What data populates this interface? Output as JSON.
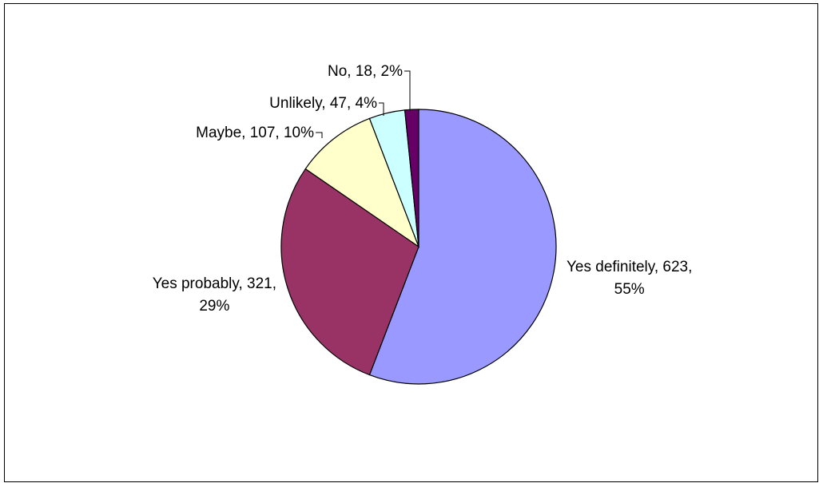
{
  "chart_data": {
    "type": "pie",
    "title": "",
    "legend": "none",
    "slices": [
      {
        "label": "Yes definitely",
        "value": 623,
        "percent": "55%",
        "color": "#9999ff",
        "display": [
          "Yes definitely, 623,",
          "55%"
        ]
      },
      {
        "label": "Yes probably",
        "value": 321,
        "percent": "29%",
        "color": "#993366",
        "display": [
          "Yes probably, 321,",
          "29%"
        ]
      },
      {
        "label": "Maybe",
        "value": 107,
        "percent": "10%",
        "color": "#ffffcc",
        "display": [
          "Maybe, 107, 10%"
        ]
      },
      {
        "label": "Unlikely",
        "value": 47,
        "percent": "4%",
        "color": "#ccffff",
        "display": [
          "Unlikely, 47, 4%"
        ]
      },
      {
        "label": "No",
        "value": 18,
        "percent": "2%",
        "color": "#660066",
        "display": [
          "No, 18, 2%"
        ]
      }
    ]
  }
}
